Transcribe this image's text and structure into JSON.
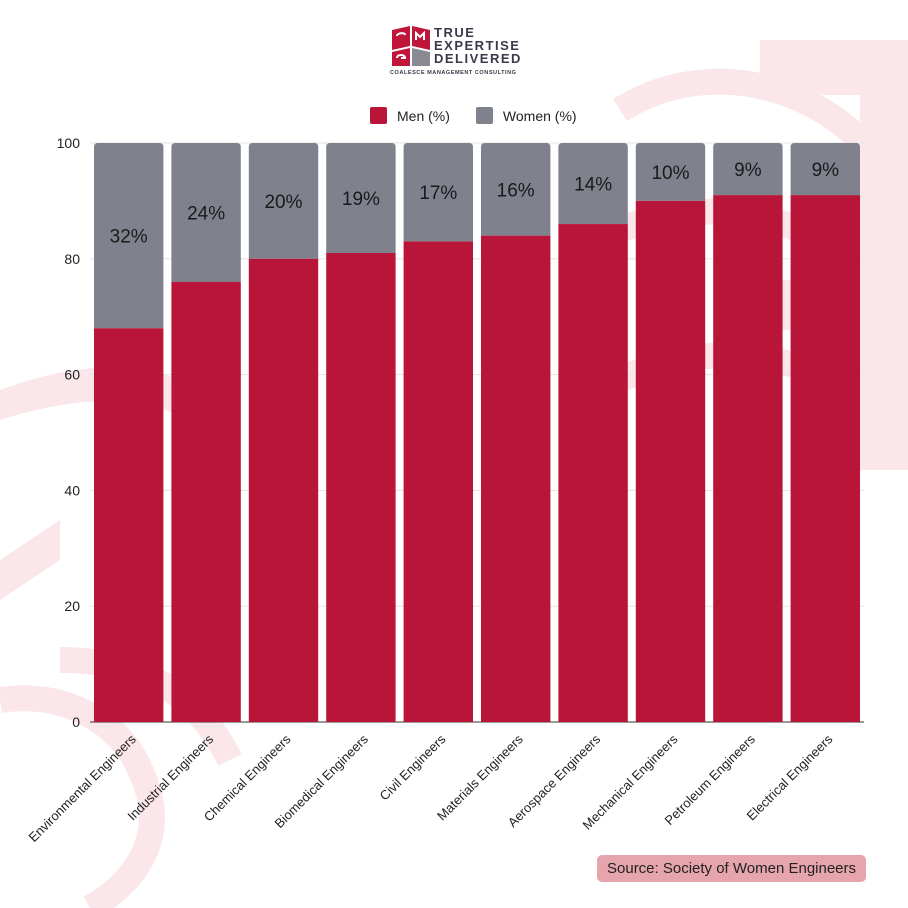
{
  "brand": {
    "line1": "TRUE",
    "line2": "EXPERTISE",
    "line3": "DELIVERED",
    "sub": "COALESCE MANAGEMENT CONSULTING",
    "color": "#c0163a"
  },
  "legend": [
    {
      "label": "Men (%)",
      "color": "#b91538"
    },
    {
      "label": "Women (%)",
      "color": "#7f818d"
    }
  ],
  "source": "Source: Society of Women Engineers",
  "chart_data": {
    "type": "bar",
    "stacked": true,
    "categories": [
      "Environmental Engineers",
      "Industrial Engineers",
      "Chemical Engineers",
      "Biomedical Engineers",
      "Civil Engineers",
      "Materials Engineers",
      "Aerospace Engineers",
      "Mechanical Engineers",
      "Petroleum Engineers",
      "Electrical Engineers"
    ],
    "series": [
      {
        "name": "Men (%)",
        "values": [
          68,
          76,
          80,
          81,
          83,
          84,
          86,
          90,
          91,
          91
        ],
        "color": "#b91538"
      },
      {
        "name": "Women (%)",
        "values": [
          32,
          24,
          20,
          19,
          17,
          16,
          14,
          10,
          9,
          9
        ],
        "color": "#7f818d",
        "data_labels": [
          "32%",
          "24%",
          "20%",
          "19%",
          "17%",
          "16%",
          "14%",
          "10%",
          "9%",
          "9%"
        ]
      }
    ],
    "ylim": [
      0,
      100
    ],
    "yticks": [
      0,
      20,
      40,
      60,
      80,
      100
    ],
    "grid": true,
    "legend_position": "top-center",
    "xlabel": "",
    "ylabel": ""
  }
}
